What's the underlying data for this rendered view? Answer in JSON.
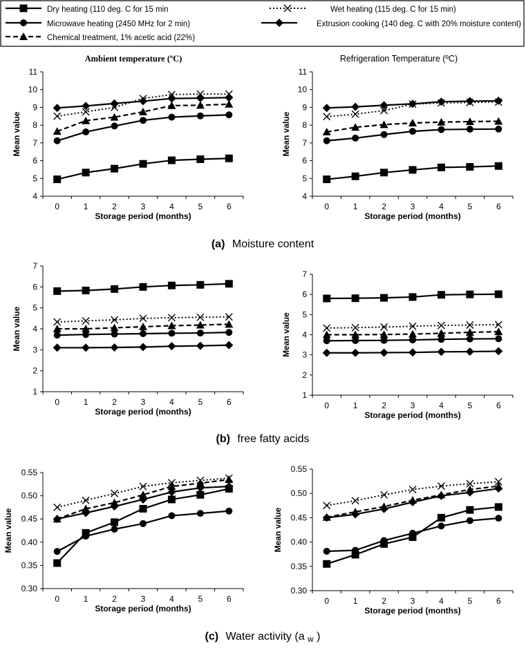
{
  "legend": {
    "items": [
      {
        "label": "Dry heating (110 deg. C for 15 min",
        "marker": "square",
        "dash": "solid"
      },
      {
        "label": "Wet heating (115 deg. C for 15 min)",
        "marker": "x",
        "dash": "dotted"
      },
      {
        "label": "Microwave heating (2450 MHz for 2 min)",
        "marker": "circle",
        "dash": "solid"
      },
      {
        "label": "Extrusion cooking (140 deg. C with 20% moisture content)",
        "marker": "diamond",
        "dash": "solid"
      },
      {
        "label": "Chemical treatment, 1% acetic acid (22%)",
        "marker": "triangle",
        "dash": "dashed"
      }
    ]
  },
  "captions": {
    "a_letter": "(a)",
    "a_text": "Moisture content",
    "b_letter": "(b)",
    "b_text": "free fatty acids",
    "c_letter": "(c)",
    "c_text": "Water activity (a",
    "c_sub": "w",
    "c_close": ")"
  },
  "chart_data": [
    {
      "id": "a-ambient",
      "type": "line",
      "title": "Ambient temperature (ºC)",
      "xlabel": "Storage period (months)",
      "ylabel": "Mean value",
      "x": [
        0,
        1,
        2,
        3,
        4,
        5,
        6
      ],
      "ylim": [
        4,
        11
      ],
      "yticks": [
        4,
        5,
        6,
        7,
        8,
        9,
        10,
        11
      ],
      "series": [
        {
          "name": "Dry heating",
          "values": [
            4.95,
            5.33,
            5.55,
            5.82,
            6.02,
            6.08,
            6.13
          ]
        },
        {
          "name": "Wet heating",
          "values": [
            8.5,
            8.75,
            9.0,
            9.5,
            9.72,
            9.75,
            9.75
          ]
        },
        {
          "name": "Microwave heating",
          "values": [
            7.12,
            7.62,
            7.95,
            8.27,
            8.45,
            8.52,
            8.58
          ]
        },
        {
          "name": "Extrusion cooking",
          "values": [
            8.97,
            9.08,
            9.22,
            9.35,
            9.5,
            9.52,
            9.55
          ]
        },
        {
          "name": "Chemical treatment",
          "values": [
            7.65,
            8.25,
            8.45,
            8.75,
            9.1,
            9.12,
            9.18
          ]
        }
      ]
    },
    {
      "id": "a-refrig",
      "type": "line",
      "title": "Refrigeration Temperature (ºC)",
      "xlabel": "Storage period (months)",
      "ylabel": "Mean value",
      "x": [
        0,
        1,
        2,
        3,
        4,
        5,
        6
      ],
      "ylim": [
        4,
        11
      ],
      "yticks": [
        4,
        5,
        6,
        7,
        8,
        9,
        10,
        11
      ],
      "series": [
        {
          "name": "Dry heating",
          "values": [
            4.95,
            5.12,
            5.33,
            5.48,
            5.62,
            5.65,
            5.7
          ]
        },
        {
          "name": "Wet heating",
          "values": [
            8.48,
            8.62,
            8.82,
            9.18,
            9.25,
            9.28,
            9.3
          ]
        },
        {
          "name": "Microwave heating",
          "values": [
            7.12,
            7.27,
            7.47,
            7.65,
            7.75,
            7.77,
            7.78
          ]
        },
        {
          "name": "Extrusion cooking",
          "values": [
            8.97,
            9.03,
            9.12,
            9.2,
            9.32,
            9.35,
            9.37
          ]
        },
        {
          "name": "Chemical treatment",
          "values": [
            7.62,
            7.88,
            8.03,
            8.12,
            8.17,
            8.2,
            8.22
          ]
        }
      ]
    },
    {
      "id": "b-ambient",
      "type": "line",
      "title": "",
      "xlabel": "Storage period (months)",
      "ylabel": "Mean value",
      "x": [
        0,
        1,
        2,
        3,
        4,
        5,
        6
      ],
      "ylim": [
        1,
        7
      ],
      "yticks": [
        1,
        2,
        3,
        4,
        5,
        6,
        7
      ],
      "series": [
        {
          "name": "Dry heating",
          "values": [
            5.8,
            5.83,
            5.9,
            6.0,
            6.07,
            6.1,
            6.15
          ]
        },
        {
          "name": "Wet heating",
          "values": [
            4.33,
            4.38,
            4.43,
            4.5,
            4.53,
            4.55,
            4.57
          ]
        },
        {
          "name": "Microwave heating",
          "values": [
            3.7,
            3.73,
            3.75,
            3.77,
            3.79,
            3.8,
            3.83
          ]
        },
        {
          "name": "Extrusion cooking",
          "values": [
            3.1,
            3.1,
            3.11,
            3.13,
            3.17,
            3.19,
            3.22
          ]
        },
        {
          "name": "Chemical treatment",
          "values": [
            4.0,
            4.0,
            4.05,
            4.1,
            4.15,
            4.18,
            4.22
          ]
        }
      ]
    },
    {
      "id": "b-refrig",
      "type": "line",
      "title": "",
      "xlabel": "Storage period (months)",
      "ylabel": "Mean value",
      "x": [
        0,
        1,
        2,
        3,
        4,
        5,
        6
      ],
      "ylim": [
        1,
        7
      ],
      "yticks": [
        1,
        2,
        3,
        4,
        5,
        6,
        7
      ],
      "series": [
        {
          "name": "Dry heating",
          "values": [
            5.8,
            5.81,
            5.83,
            5.87,
            5.98,
            6.0,
            6.01
          ]
        },
        {
          "name": "Wet heating",
          "values": [
            4.33,
            4.35,
            4.38,
            4.42,
            4.46,
            4.48,
            4.5
          ]
        },
        {
          "name": "Microwave heating",
          "values": [
            3.7,
            3.71,
            3.72,
            3.74,
            3.77,
            3.79,
            3.8
          ]
        },
        {
          "name": "Extrusion cooking",
          "values": [
            3.1,
            3.1,
            3.11,
            3.12,
            3.15,
            3.16,
            3.18
          ]
        },
        {
          "name": "Chemical treatment",
          "values": [
            4.0,
            4.0,
            4.01,
            4.03,
            4.07,
            4.12,
            4.15
          ]
        }
      ]
    },
    {
      "id": "c-ambient",
      "type": "line",
      "title": "",
      "xlabel": "Storage period (months)",
      "ylabel": "Mean value",
      "x": [
        0,
        1,
        2,
        3,
        4,
        5,
        6
      ],
      "ylim": [
        0.3,
        0.55
      ],
      "yticks": [
        0.3,
        0.35,
        0.4,
        0.45,
        0.5,
        0.55
      ],
      "decimals": 2,
      "series": [
        {
          "name": "Dry heating",
          "values": [
            0.355,
            0.42,
            0.443,
            0.472,
            0.492,
            0.502,
            0.515
          ]
        },
        {
          "name": "Wet heating",
          "values": [
            0.475,
            0.49,
            0.505,
            0.52,
            0.528,
            0.533,
            0.538
          ]
        },
        {
          "name": "Microwave heating",
          "values": [
            0.38,
            0.413,
            0.428,
            0.44,
            0.457,
            0.462,
            0.467
          ]
        },
        {
          "name": "Extrusion cooking",
          "values": [
            0.45,
            0.463,
            0.477,
            0.492,
            0.508,
            0.517,
            0.52
          ]
        },
        {
          "name": "Chemical treatment",
          "values": [
            0.45,
            0.472,
            0.485,
            0.502,
            0.52,
            0.527,
            0.535
          ]
        }
      ]
    },
    {
      "id": "c-refrig",
      "type": "line",
      "title": "",
      "xlabel": "Storage period (months)",
      "ylabel": "Mean value",
      "x": [
        0,
        1,
        2,
        3,
        4,
        5,
        6
      ],
      "ylim": [
        0.3,
        0.55
      ],
      "yticks": [
        0.3,
        0.35,
        0.4,
        0.45,
        0.5,
        0.55
      ],
      "decimals": 2,
      "series": [
        {
          "name": "Dry heating",
          "values": [
            0.355,
            0.374,
            0.396,
            0.41,
            0.45,
            0.466,
            0.472
          ]
        },
        {
          "name": "Wet heating",
          "values": [
            0.475,
            0.485,
            0.497,
            0.508,
            0.515,
            0.52,
            0.524
          ]
        },
        {
          "name": "Microwave heating",
          "values": [
            0.381,
            0.383,
            0.403,
            0.418,
            0.433,
            0.444,
            0.449
          ]
        },
        {
          "name": "Extrusion cooking",
          "values": [
            0.45,
            0.457,
            0.468,
            0.482,
            0.495,
            0.502,
            0.51
          ]
        },
        {
          "name": "Chemical treatment",
          "values": [
            0.451,
            0.462,
            0.473,
            0.486,
            0.497,
            0.508,
            0.515
          ]
        }
      ]
    }
  ]
}
